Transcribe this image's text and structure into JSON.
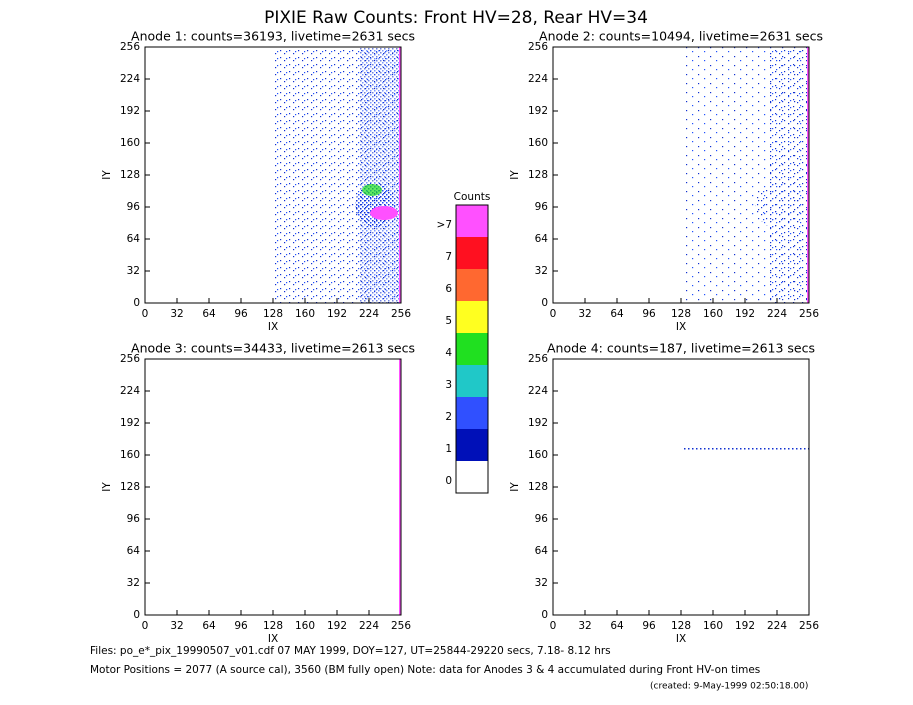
{
  "title": "PIXIE Raw Counts:  Front HV=28, Rear HV=34",
  "chart_data": [
    {
      "type": "heatmap",
      "title": "Anode 1: counts=36193, livetime=2631 secs",
      "xlabel": "IX",
      "ylabel": "IY",
      "xlim": [
        0,
        256
      ],
      "ylim": [
        0,
        256
      ],
      "xticks": [
        0,
        32,
        64,
        96,
        128,
        160,
        192,
        224,
        256
      ],
      "yticks": [
        0,
        32,
        64,
        96,
        128,
        160,
        192,
        224,
        256
      ]
    },
    {
      "type": "heatmap",
      "title": "Anode 2: counts=10494, livetime=2631 secs",
      "xlabel": "IX",
      "ylabel": "IY",
      "xlim": [
        0,
        256
      ],
      "ylim": [
        0,
        256
      ],
      "xticks": [
        0,
        32,
        64,
        96,
        128,
        160,
        192,
        224,
        256
      ],
      "yticks": [
        0,
        32,
        64,
        96,
        128,
        160,
        192,
        224,
        256
      ]
    },
    {
      "type": "heatmap",
      "title": "Anode 3: counts=34433, livetime=2613 secs",
      "xlabel": "IX",
      "ylabel": "IY",
      "xlim": [
        0,
        256
      ],
      "ylim": [
        0,
        256
      ],
      "xticks": [
        0,
        32,
        64,
        96,
        128,
        160,
        192,
        224,
        256
      ],
      "yticks": [
        0,
        32,
        64,
        96,
        128,
        160,
        192,
        224,
        256
      ]
    },
    {
      "type": "heatmap",
      "title": "Anode 4: counts=187, livetime=2613 secs",
      "xlabel": "IX",
      "ylabel": "IY",
      "xlim": [
        0,
        256
      ],
      "ylim": [
        0,
        256
      ],
      "xticks": [
        0,
        32,
        64,
        96,
        128,
        160,
        192,
        224,
        256
      ],
      "yticks": [
        0,
        32,
        64,
        96,
        128,
        160,
        192,
        224,
        256
      ]
    }
  ],
  "colorbar": {
    "title": "Counts",
    "labels": [
      "0",
      "1",
      "2",
      "3",
      "4",
      "5",
      "6",
      "7",
      ">7"
    ],
    "colors": [
      "#ffffff",
      "#0010b8",
      "#3050ff",
      "#20c8c8",
      "#20e020",
      "#ffff20",
      "#ff6830",
      "#ff1020",
      "#ff50ff"
    ]
  },
  "footer": [
    "Files: po_e*_pix_19990507_v01.cdf    07 MAY 1999, DOY=127, UT=25844-29220 secs,  7.18- 8.12 hrs",
    "Motor Positions = 2077 (A source cal), 3560 (BM fully open)    Note: data for Anodes 3 & 4 accumulated during Front HV-on times",
    "(created:  9-May-1999 02:50:18.00)"
  ]
}
